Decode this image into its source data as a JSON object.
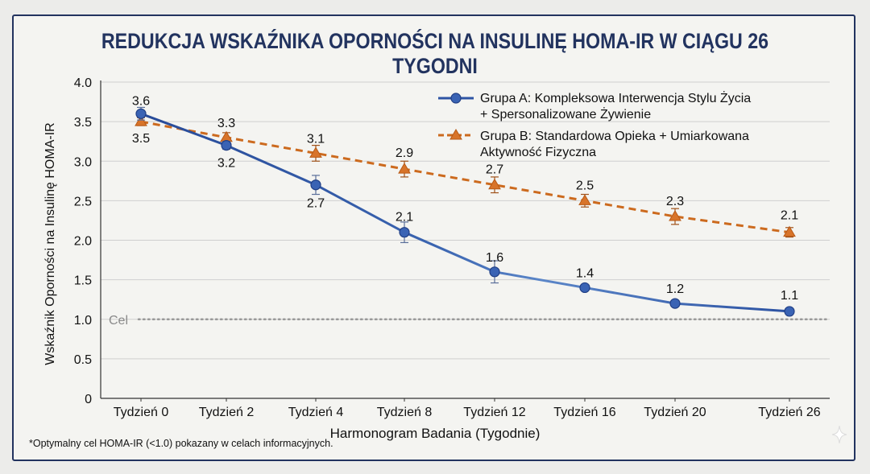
{
  "title": "REDUKCJA WSKAŹNIKA OPORNOŚCI NA INSULINĘ HOMA-IR W CIĄGU 26 TYGODNI",
  "footnote": "*Optymalny cel HOMA-IR (<1.0) pokazany w celach informacyjnych.",
  "chart_data": {
    "type": "line",
    "title": "REDUKCJA WSKAŹNIKA OPORNOŚCI NA INSULINĘ HOMA-IR W CIĄGU 26 TYGODNI",
    "xlabel": "Harmonogram Badania (Tygodnie)",
    "ylabel": "Wskaźnik Oporności na Insulinę HOMA-IR",
    "categories": [
      "Tydzień 0",
      "Tydzień 2",
      "Tydzień 4",
      "Tydzień 8",
      "Tydzień 12",
      "Tydzień 16",
      "Tydzień 20",
      "Tydzień 26"
    ],
    "ylim": [
      0,
      4.0
    ],
    "yticks": [
      "0",
      "0.5",
      "1.0",
      "1.5",
      "2.0",
      "2.5",
      "3.0",
      "3.5",
      "4.0"
    ],
    "grid": true,
    "legend_position": "top-right",
    "series": [
      {
        "name": "Grupa A: Kompleksowa Interwencja Stylu Życia + Spersonalizowane Żywienie",
        "legend_lines": [
          "Grupa A: Kompleksowa Interwencja Stylu Życia",
          "+ Spersonalizowane Żywienie"
        ],
        "values": [
          3.6,
          3.2,
          2.7,
          2.1,
          1.6,
          1.4,
          1.2,
          1.1
        ],
        "labels": [
          "3.6",
          "3.2",
          "2.7",
          "2.1",
          "1.6",
          "1.4",
          "1.2",
          "1.1"
        ],
        "error": [
          0.08,
          0.05,
          0.12,
          0.13,
          0.14,
          0,
          0,
          0
        ],
        "color": "#2e54a4",
        "marker": "circle",
        "line": "solid"
      },
      {
        "name": "Grupa B: Standardowa Opieka + Umiarkowana Aktywność Fizyczna",
        "legend_lines": [
          "Grupa B: Standardowa Opieka + Umiarkowana",
          "Aktywność Fizyczna"
        ],
        "values": [
          3.5,
          3.3,
          3.1,
          2.9,
          2.7,
          2.5,
          2.3,
          2.1
        ],
        "labels": [
          "3.5",
          "3.3",
          "3.1",
          "2.9",
          "2.7",
          "2.5",
          "2.3",
          "2.1"
        ],
        "error": [
          0.05,
          0.06,
          0.1,
          0.1,
          0.1,
          0.08,
          0.1,
          0.06
        ],
        "color": "#cc6a1e",
        "marker": "triangle",
        "line": "dashed"
      }
    ],
    "reference_line": {
      "value": 1.0,
      "label": "Cel",
      "style": "dotted",
      "color": "#999999"
    }
  }
}
